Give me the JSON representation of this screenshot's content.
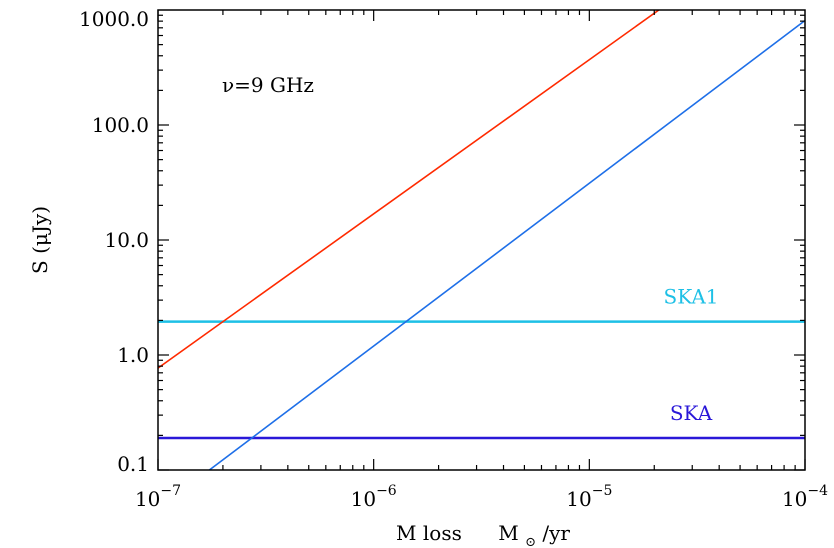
{
  "chart_data": {
    "type": "line",
    "annotation": "ν=9 GHz",
    "xlabel": {
      "main": "M loss",
      "unit_base": "M",
      "unit_sub": "⊙",
      "unit_rest": "/yr"
    },
    "ylabel": "S (μJy)",
    "x_scale": "log",
    "y_scale": "log",
    "xlim": [
      1e-07,
      0.0001
    ],
    "ylim": [
      0.1,
      1000
    ],
    "x_ticks": [
      {
        "value": 1e-07,
        "base": "10",
        "exp": "−7"
      },
      {
        "value": 1e-06,
        "base": "10",
        "exp": "−6"
      },
      {
        "value": 1e-05,
        "base": "10",
        "exp": "−5"
      },
      {
        "value": 0.0001,
        "base": "10",
        "exp": "−4"
      }
    ],
    "y_ticks": [
      {
        "value": 0.1,
        "label": "0.1"
      },
      {
        "value": 1,
        "label": "1.0"
      },
      {
        "value": 10,
        "label": "10.0"
      },
      {
        "value": 100,
        "label": "100.0"
      },
      {
        "value": 1000,
        "label": "1000.0"
      }
    ],
    "grid": false,
    "series": [
      {
        "color": "#ff2a00",
        "x": [
          1e-07,
          2.1e-05
        ],
        "y": [
          0.77,
          1000
        ]
      },
      {
        "color": "#1e6fe8",
        "x": [
          1e-07,
          0.0001
        ],
        "y": [
          0.046,
          810
        ]
      }
    ],
    "thresholds": [
      {
        "label": "SKA1",
        "value": 1.95,
        "color": "#1ec0e6"
      },
      {
        "label": "SKA",
        "value": 0.19,
        "color": "#2a18d8"
      }
    ]
  }
}
